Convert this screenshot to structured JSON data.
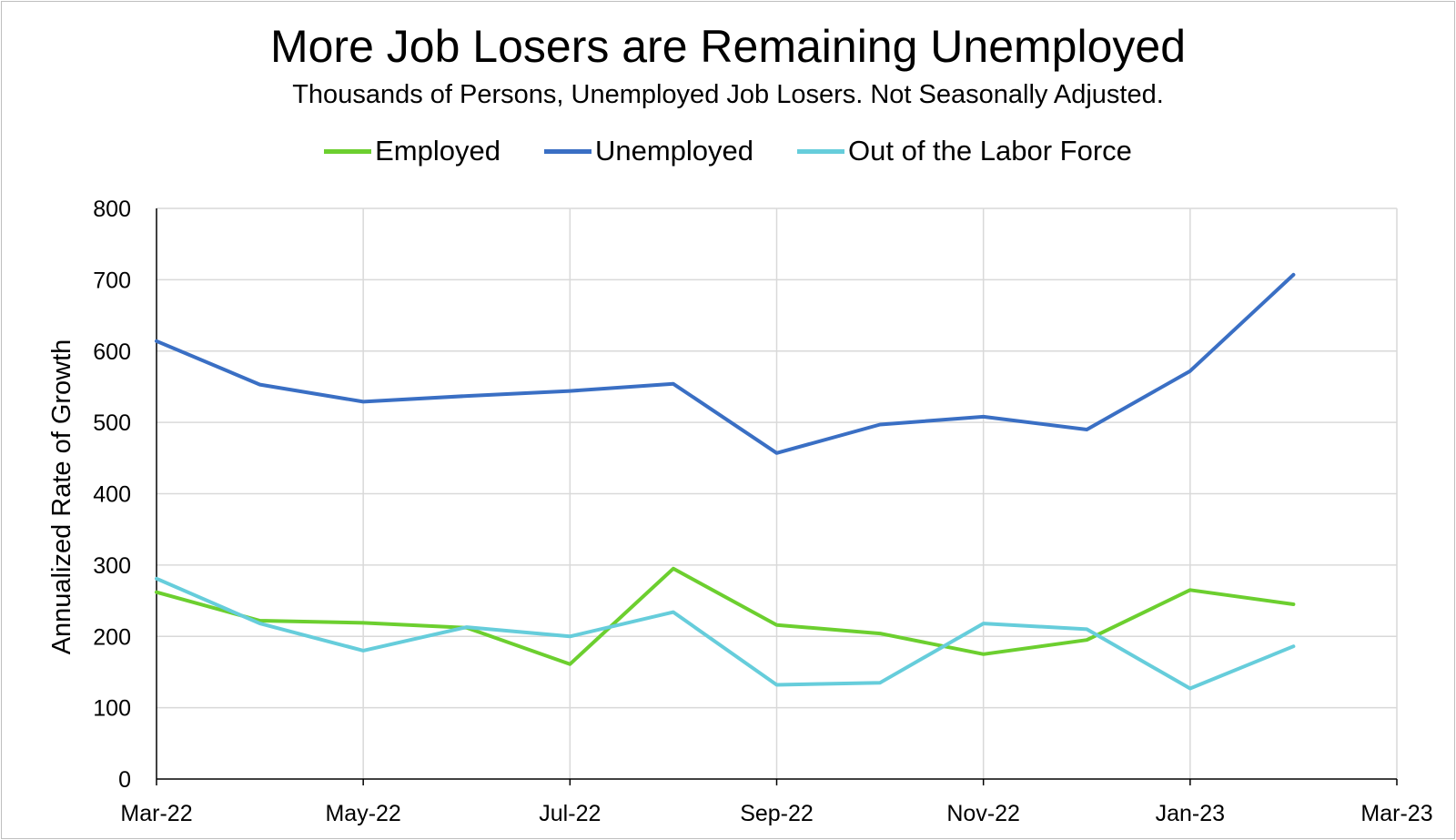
{
  "chart_data": {
    "type": "line",
    "title": "More Job Losers are Remaining Unemployed",
    "subtitle": "Thousands of Persons, Unemployed Job Losers. Not Seasonally Adjusted.",
    "xlabel": "",
    "ylabel": "Annualized Rate of Growth",
    "x": [
      "Mar-22",
      "Apr-22",
      "May-22",
      "Jun-22",
      "Jul-22",
      "Aug-22",
      "Sep-22",
      "Oct-22",
      "Nov-22",
      "Dec-22",
      "Jan-23",
      "Feb-23"
    ],
    "x_tick_labels": [
      "Mar-22",
      "May-22",
      "Jul-22",
      "Sep-22",
      "Nov-22",
      "Jan-23",
      "Mar-23"
    ],
    "x_tick_indices": [
      0,
      2,
      4,
      6,
      8,
      10,
      12
    ],
    "xlim_index": [
      0,
      12
    ],
    "ylim": [
      0,
      800
    ],
    "y_ticks": [
      0,
      100,
      200,
      300,
      400,
      500,
      600,
      700,
      800
    ],
    "grid": true,
    "legend_position": "top-center",
    "series": [
      {
        "name": "Employed",
        "color": "#6ccf2f",
        "values": [
          262,
          222,
          219,
          212,
          161,
          295,
          216,
          204,
          175,
          195,
          265,
          245
        ]
      },
      {
        "name": "Unemployed",
        "color": "#3a6fc4",
        "values": [
          614,
          553,
          529,
          537,
          544,
          554,
          457,
          497,
          508,
          490,
          572,
          707
        ]
      },
      {
        "name": "Out of the Labor Force",
        "color": "#66cddb",
        "values": [
          281,
          218,
          180,
          213,
          200,
          234,
          132,
          135,
          218,
          210,
          127,
          186
        ]
      }
    ]
  }
}
